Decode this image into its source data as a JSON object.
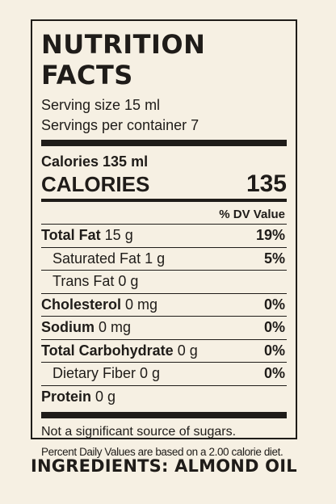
{
  "label": {
    "title": "NUTRITION FACTS",
    "serving_size": "Serving size 15 ml",
    "servings_per_container": "Servings per container 7",
    "calories_small": "Calories 135 ml",
    "calories_label": "CALORIES",
    "calories_value": "135",
    "dv_header": "% DV Value",
    "nutrients": [
      {
        "name": "Total Fat",
        "amount": " 15 g",
        "dv": "19%"
      },
      {
        "name": "Saturated Fat",
        "amount": " 1 g",
        "dv": "5%"
      },
      {
        "name": "Trans Fat",
        "amount": " 0 g",
        "dv": ""
      },
      {
        "name": "Cholesterol",
        "amount": " 0 mg",
        "dv": "0%"
      },
      {
        "name": "Sodium",
        "amount": " 0 mg",
        "dv": "0%"
      },
      {
        "name": "Total Carbohydrate",
        "amount": " 0 g",
        "dv": "0%"
      },
      {
        "name": "Dietary Fiber",
        "amount": " 0 g",
        "dv": "0%"
      },
      {
        "name": "Protein",
        "amount": " 0 g",
        "dv": ""
      }
    ],
    "footer_note": "Not a significant source of sugars.",
    "footer_dv_note": "Percent Daily Values are based on a 2.00 calorie diet."
  },
  "ingredients": "INGREDIENTS: ALMOND OIL"
}
